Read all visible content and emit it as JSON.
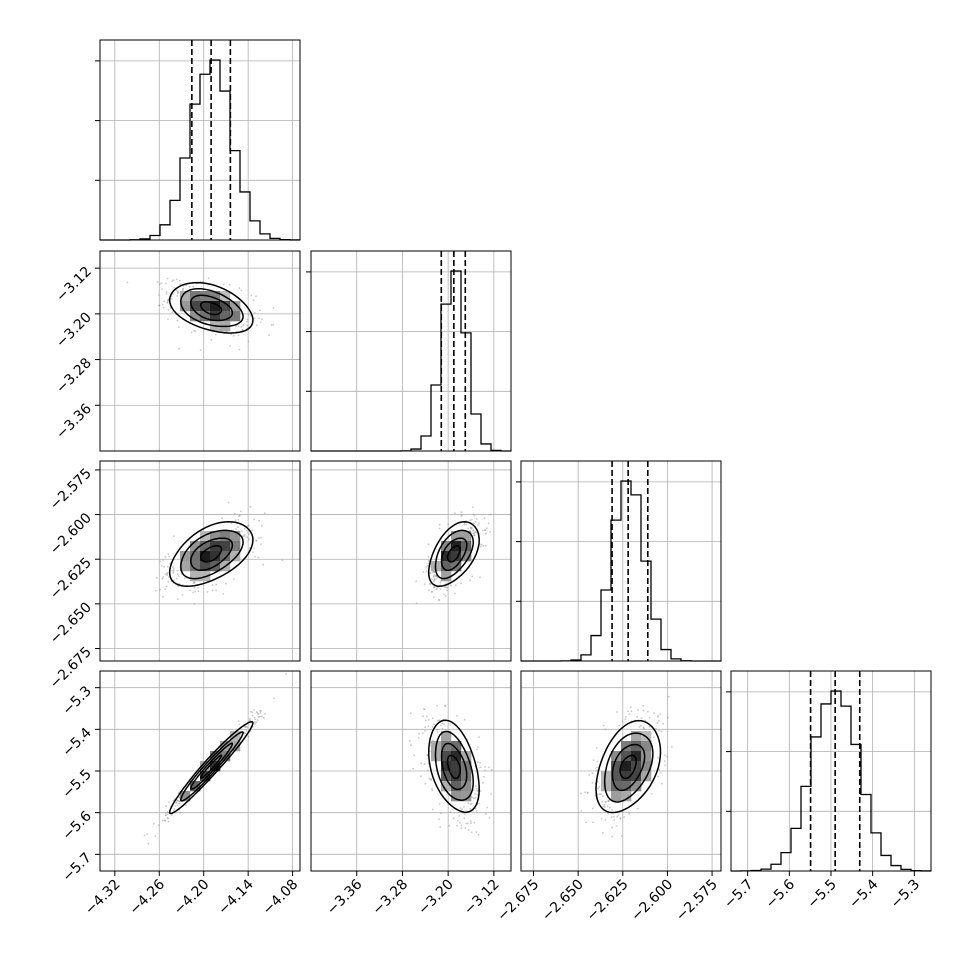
{
  "chart_data": {
    "type": "corner",
    "title": "",
    "grid": true,
    "parameters": [
      {
        "range": [
          -4.34,
          -4.07
        ],
        "ticks": [
          "−4.32",
          "−4.26",
          "−4.20",
          "−4.14",
          "−4.08"
        ],
        "tick_values": [
          -4.32,
          -4.26,
          -4.2,
          -4.14,
          -4.08
        ],
        "mean": -4.19,
        "sigma": 0.028,
        "quantiles": [
          -4.216,
          -4.19,
          -4.164
        ]
      },
      {
        "range": [
          -3.44,
          -3.09
        ],
        "ticks": [
          "−3.36",
          "−3.28",
          "−3.20",
          "−3.12"
        ],
        "tick_values": [
          -3.36,
          -3.28,
          -3.2,
          -3.12
        ],
        "mean": -3.19,
        "sigma": 0.022,
        "quantiles": [
          -3.212,
          -3.19,
          -3.17
        ]
      },
      {
        "range": [
          -2.682,
          -2.57
        ],
        "ticks": [
          "−2.675",
          "−2.650",
          "−2.625",
          "−2.600",
          "−2.575"
        ],
        "tick_values": [
          -2.675,
          -2.65,
          -2.625,
          -2.6,
          -2.575
        ],
        "mean": -2.622,
        "sigma": 0.009,
        "quantiles": [
          -2.631,
          -2.622,
          -2.611
        ]
      },
      {
        "range": [
          -5.74,
          -5.26
        ],
        "ticks": [
          "−5.7",
          "−5.6",
          "−5.5",
          "−5.4",
          "−5.3"
        ],
        "tick_values": [
          -5.7,
          -5.6,
          -5.5,
          -5.4,
          -5.3
        ],
        "mean": -5.49,
        "sigma": 0.055,
        "quantiles": [
          -5.549,
          -5.49,
          -5.431
        ]
      }
    ],
    "correlations": {
      "1-0": -0.4,
      "2-0": 0.5,
      "2-1": 0.5,
      "3-0": 0.97,
      "3-1": -0.4,
      "3-2": 0.4
    },
    "diagonal": "histogram with 16/50/84% quantile dashed lines",
    "off_diagonal": "2D histogram with 1-sigma and 2-sigma contours and scatter points"
  }
}
